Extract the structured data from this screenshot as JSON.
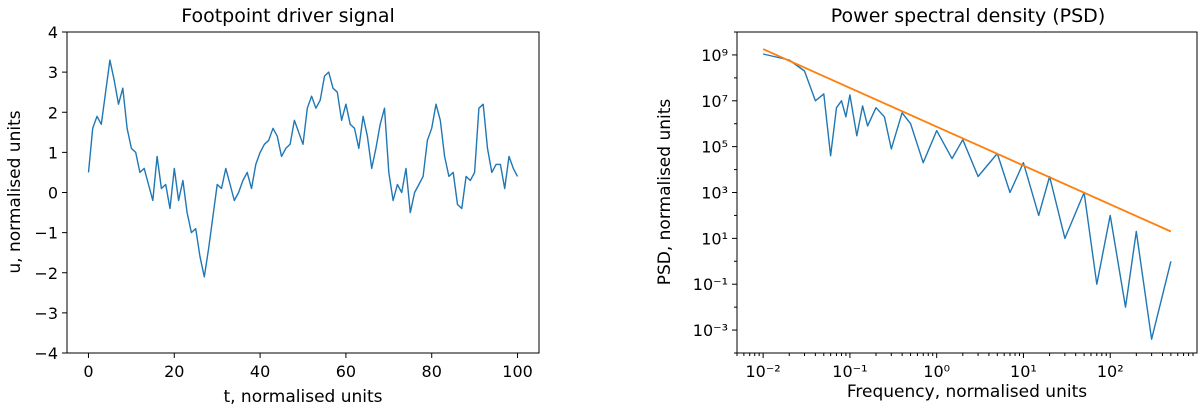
{
  "chart_data": [
    {
      "type": "line",
      "title": "Footpoint driver signal",
      "xlabel": "t, normalised units",
      "ylabel": "u, normalised units",
      "xlim": [
        -5,
        105
      ],
      "ylim": [
        -4,
        4
      ],
      "xticks": [
        0,
        20,
        40,
        60,
        80,
        100
      ],
      "xtick_labels": [
        "0",
        "20",
        "40",
        "60",
        "80",
        "100"
      ],
      "yticks": [
        -4,
        -3,
        -2,
        -1,
        0,
        1,
        2,
        3,
        4
      ],
      "ytick_labels": [
        "−4",
        "−3",
        "−2",
        "−1",
        "0",
        "1",
        "2",
        "3",
        "4"
      ],
      "grid": false,
      "series": [
        {
          "color": "#1f77b4",
          "x": [
            0,
            1,
            2,
            3,
            4,
            5,
            6,
            7,
            8,
            9,
            10,
            11,
            12,
            13,
            14,
            15,
            16,
            17,
            18,
            19,
            20,
            21,
            22,
            23,
            24,
            25,
            26,
            27,
            28,
            29,
            30,
            31,
            32,
            33,
            34,
            35,
            36,
            37,
            38,
            39,
            40,
            41,
            42,
            43,
            44,
            45,
            46,
            47,
            48,
            49,
            50,
            51,
            52,
            53,
            54,
            55,
            56,
            57,
            58,
            59,
            60,
            61,
            62,
            63,
            64,
            65,
            66,
            67,
            68,
            69,
            70,
            71,
            72,
            73,
            74,
            75,
            76,
            77,
            78,
            79,
            80,
            81,
            82,
            83,
            84,
            85,
            86,
            87,
            88,
            89,
            90,
            91,
            92,
            93,
            94,
            95,
            96,
            97,
            98,
            99,
            100
          ],
          "y": [
            0.5,
            1.6,
            1.9,
            1.7,
            2.5,
            3.3,
            2.8,
            2.2,
            2.6,
            1.6,
            1.1,
            1.0,
            0.5,
            0.6,
            0.2,
            -0.2,
            0.9,
            0.1,
            0.2,
            -0.4,
            0.6,
            -0.2,
            0.3,
            -0.5,
            -1.0,
            -0.9,
            -1.6,
            -2.1,
            -1.4,
            -0.6,
            0.2,
            0.1,
            0.6,
            0.2,
            -0.2,
            0.0,
            0.3,
            0.5,
            0.1,
            0.7,
            1.0,
            1.2,
            1.3,
            1.6,
            1.4,
            0.9,
            1.1,
            1.2,
            1.8,
            1.5,
            1.2,
            2.1,
            2.4,
            2.1,
            2.3,
            2.9,
            3.0,
            2.6,
            2.5,
            1.8,
            2.2,
            1.7,
            1.6,
            1.1,
            1.9,
            1.4,
            0.6,
            1.1,
            1.7,
            2.1,
            0.5,
            -0.2,
            0.2,
            0.0,
            0.6,
            -0.5,
            0.0,
            0.2,
            0.4,
            1.3,
            1.6,
            2.2,
            1.8,
            0.9,
            0.4,
            0.5,
            -0.3,
            -0.4,
            0.4,
            0.3,
            0.5,
            2.1,
            2.2,
            1.1,
            0.5,
            0.7,
            0.7,
            0.1,
            0.9,
            0.6,
            0.4
          ]
        }
      ]
    },
    {
      "type": "line",
      "title": "Power spectral density (PSD)",
      "xlabel": "Frequency, normalised units",
      "ylabel": "PSD, normalised units",
      "xscale": "log",
      "yscale": "log",
      "xlim": [
        0.005,
        1000
      ],
      "ylim": [
        0.0001,
        10000000000
      ],
      "xticks": [
        0.01,
        0.1,
        1,
        10,
        100
      ],
      "xtick_labels": [
        "10⁻²",
        "10⁻¹",
        "10⁰",
        "10¹",
        "10²"
      ],
      "yticks": [
        0.001,
        0.1,
        10,
        1000,
        100000,
        10000000,
        1000000000
      ],
      "ytick_labels": [
        "10⁻³",
        "10⁻¹",
        "10¹",
        "10³",
        "10⁵",
        "10⁷",
        "10⁹"
      ],
      "grid": false,
      "series": [
        {
          "color": "#1f77b4",
          "x": [
            0.01,
            0.02,
            0.03,
            0.04,
            0.05,
            0.06,
            0.07,
            0.08,
            0.09,
            0.1,
            0.12,
            0.14,
            0.16,
            0.2,
            0.25,
            0.3,
            0.4,
            0.5,
            0.7,
            1,
            1.5,
            2,
            3,
            5,
            7,
            10,
            15,
            20,
            30,
            50,
            70,
            100,
            150,
            200,
            300,
            500
          ],
          "y": [
            1100000000,
            600000000,
            200000000,
            10000000,
            20000000,
            40000,
            5000000,
            10000000,
            2000000,
            18000000,
            300000,
            6000000,
            800000,
            5000000,
            2000000,
            80000,
            3000000,
            1000000,
            20000,
            500000,
            30000,
            200000,
            5000,
            50000,
            1000,
            20000,
            100,
            5000,
            10,
            1000,
            0.1,
            100,
            0.01,
            20,
            0.0004,
            1
          ]
        },
        {
          "color": "#ff7f0e",
          "x": [
            0.01,
            500
          ],
          "y": [
            1800000000,
            20
          ]
        }
      ]
    }
  ]
}
